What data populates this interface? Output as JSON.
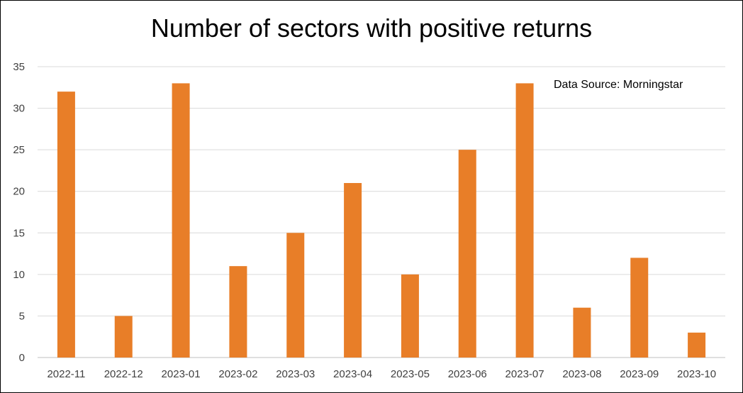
{
  "chart_data": {
    "type": "bar",
    "title": "Number of sectors with positive returns",
    "annotation": "Data Source: Morningstar",
    "categories": [
      "2022-11",
      "2022-12",
      "2023-01",
      "2023-02",
      "2023-03",
      "2023-04",
      "2023-05",
      "2023-06",
      "2023-07",
      "2023-08",
      "2023-09",
      "2023-10"
    ],
    "values": [
      32,
      5,
      33,
      11,
      15,
      21,
      10,
      25,
      33,
      6,
      12,
      3
    ],
    "ylim": [
      0,
      35
    ],
    "yticks": [
      "0",
      "5",
      "10",
      "15",
      "20",
      "25",
      "30",
      "35"
    ],
    "grid": true,
    "legend": "none",
    "bar_color": "#E87E28",
    "grid_color": "#D9D9D9"
  }
}
